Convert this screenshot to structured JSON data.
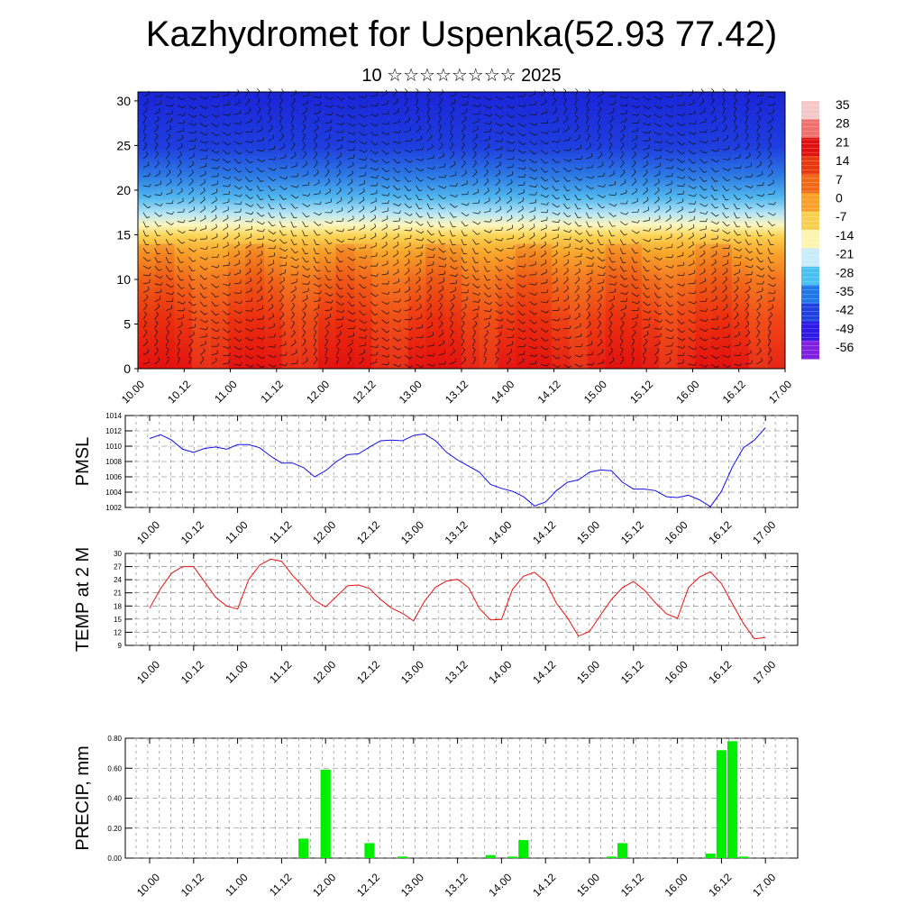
{
  "title": "Kazhydromet for Uspenka(52.93 77.42)",
  "subtitle": "10 ☆☆☆☆☆☆☆☆ 2025",
  "colors": {
    "pmsl": "#1010ee",
    "temp": "#ee1010",
    "precip": "#00ee00"
  },
  "chart_data": [
    {
      "type": "heatmap",
      "xlabel": "",
      "ylabel": "",
      "x_ticklabels": [
        "10.00",
        "10.12",
        "11.00",
        "11.12",
        "12.00",
        "12.12",
        "13.00",
        "13.12",
        "14.00",
        "14.12",
        "15.00",
        "15.12",
        "16.00",
        "16.12",
        "17.00"
      ],
      "ylim": [
        0,
        31
      ],
      "y_ticks": [
        0,
        5,
        10,
        15,
        20,
        25,
        30
      ],
      "colorbar_labels": [
        "35",
        "28",
        "21",
        "14",
        "7",
        "0",
        "-7",
        "-14",
        "-21",
        "-28",
        "-35",
        "-42",
        "-49",
        "-56"
      ],
      "colorbar_colors": [
        "#f4c8c8",
        "#f07070",
        "#e01010",
        "#e83810",
        "#f06818",
        "#f8a028",
        "#f8d050",
        "#fcf4b0",
        "#c8ecf8",
        "#48c0f0",
        "#2078e8",
        "#2040e0",
        "#3018e8",
        "#8020e0"
      ]
    },
    {
      "type": "line",
      "ylabel": "PMSL",
      "x_ticklabels": [
        "10.00",
        "10.12",
        "11.00",
        "11.12",
        "12.00",
        "12.12",
        "13.00",
        "13.12",
        "14.00",
        "14.12",
        "15.00",
        "15.12",
        "16.00",
        "16.12",
        "17.00"
      ],
      "ylim": [
        1002,
        1014
      ],
      "y_ticks": [
        1002,
        1004,
        1006,
        1008,
        1010,
        1012,
        1014
      ],
      "series": [
        {
          "values": [
            1011,
            1011.5,
            1010.8,
            1009.6,
            1009.2,
            1009.7,
            1009.9,
            1009.6,
            1010.2,
            1010.2,
            1009.8,
            1008.7,
            1007.8,
            1007.8,
            1007.2,
            1006,
            1006.8,
            1008,
            1008.9,
            1009,
            1009.9,
            1010.7,
            1010.8,
            1010.7,
            1011.4,
            1011.6,
            1010.7,
            1009.2,
            1008.2,
            1007.4,
            1006.6,
            1005,
            1004.5,
            1004.1,
            1003.4,
            1002.2,
            1002.7,
            1004.2,
            1005.3,
            1005.6,
            1006.6,
            1006.9,
            1006.8,
            1005.3,
            1004.4,
            1004.4,
            1004.2,
            1003.4,
            1003.3,
            1003.6,
            1003,
            1002.1,
            1004.1,
            1007.3,
            1009.8,
            1010.8,
            1012.4
          ]
        }
      ]
    },
    {
      "type": "line",
      "ylabel": "TEMP at 2 M",
      "x_ticklabels": [
        "10.00",
        "10.12",
        "11.00",
        "11.12",
        "12.00",
        "12.12",
        "13.00",
        "13.12",
        "14.00",
        "14.12",
        "15.00",
        "15.12",
        "16.00",
        "16.12",
        "17.00"
      ],
      "ylim": [
        9,
        30
      ],
      "y_ticks": [
        9,
        12,
        15,
        18,
        21,
        24,
        27,
        30
      ],
      "series": [
        {
          "values": [
            17.5,
            22,
            25.5,
            27,
            27,
            23.5,
            20,
            18,
            17.3,
            24,
            27.3,
            28.7,
            28.2,
            25,
            22.3,
            19.3,
            17.8,
            20.2,
            22.6,
            22.8,
            22,
            19.5,
            17.5,
            16.3,
            14.6,
            19.1,
            22.3,
            23.7,
            24.1,
            22.2,
            17.4,
            14.8,
            14.9,
            21.8,
            24.8,
            25.7,
            23.6,
            18.6,
            15.3,
            11.1,
            12.2,
            15.9,
            19.5,
            22.2,
            23.6,
            21.6,
            18.7,
            16.2,
            15.2,
            22.2,
            24.6,
            25.8,
            23.1,
            18.5,
            14,
            10.5,
            10.8
          ]
        }
      ]
    },
    {
      "type": "bar",
      "ylabel": "PRECIP, mm",
      "x_ticklabels": [
        "10.00",
        "10.12",
        "11.00",
        "11.12",
        "12.00",
        "12.12",
        "13.00",
        "13.12",
        "14.00",
        "14.12",
        "15.00",
        "15.12",
        "16.00",
        "16.12",
        "17.00"
      ],
      "ylim": [
        0,
        0.8
      ],
      "y_ticklabels": [
        "0.00",
        "0.20",
        "0.40",
        "0.60",
        "0.80"
      ],
      "values": [
        0,
        0,
        0,
        0,
        0,
        0,
        0,
        0,
        0,
        0,
        0,
        0,
        0,
        0,
        0.13,
        0,
        0.59,
        0,
        0,
        0,
        0.1,
        0,
        0,
        0.01,
        0,
        0,
        0,
        0,
        0,
        0,
        0,
        0.02,
        0,
        0.01,
        0.12,
        0,
        0,
        0,
        0,
        0,
        0,
        0,
        0.01,
        0.1,
        0,
        0,
        0,
        0,
        0,
        0,
        0,
        0.03,
        0.72,
        0.78,
        0.01,
        0,
        0
      ]
    }
  ]
}
